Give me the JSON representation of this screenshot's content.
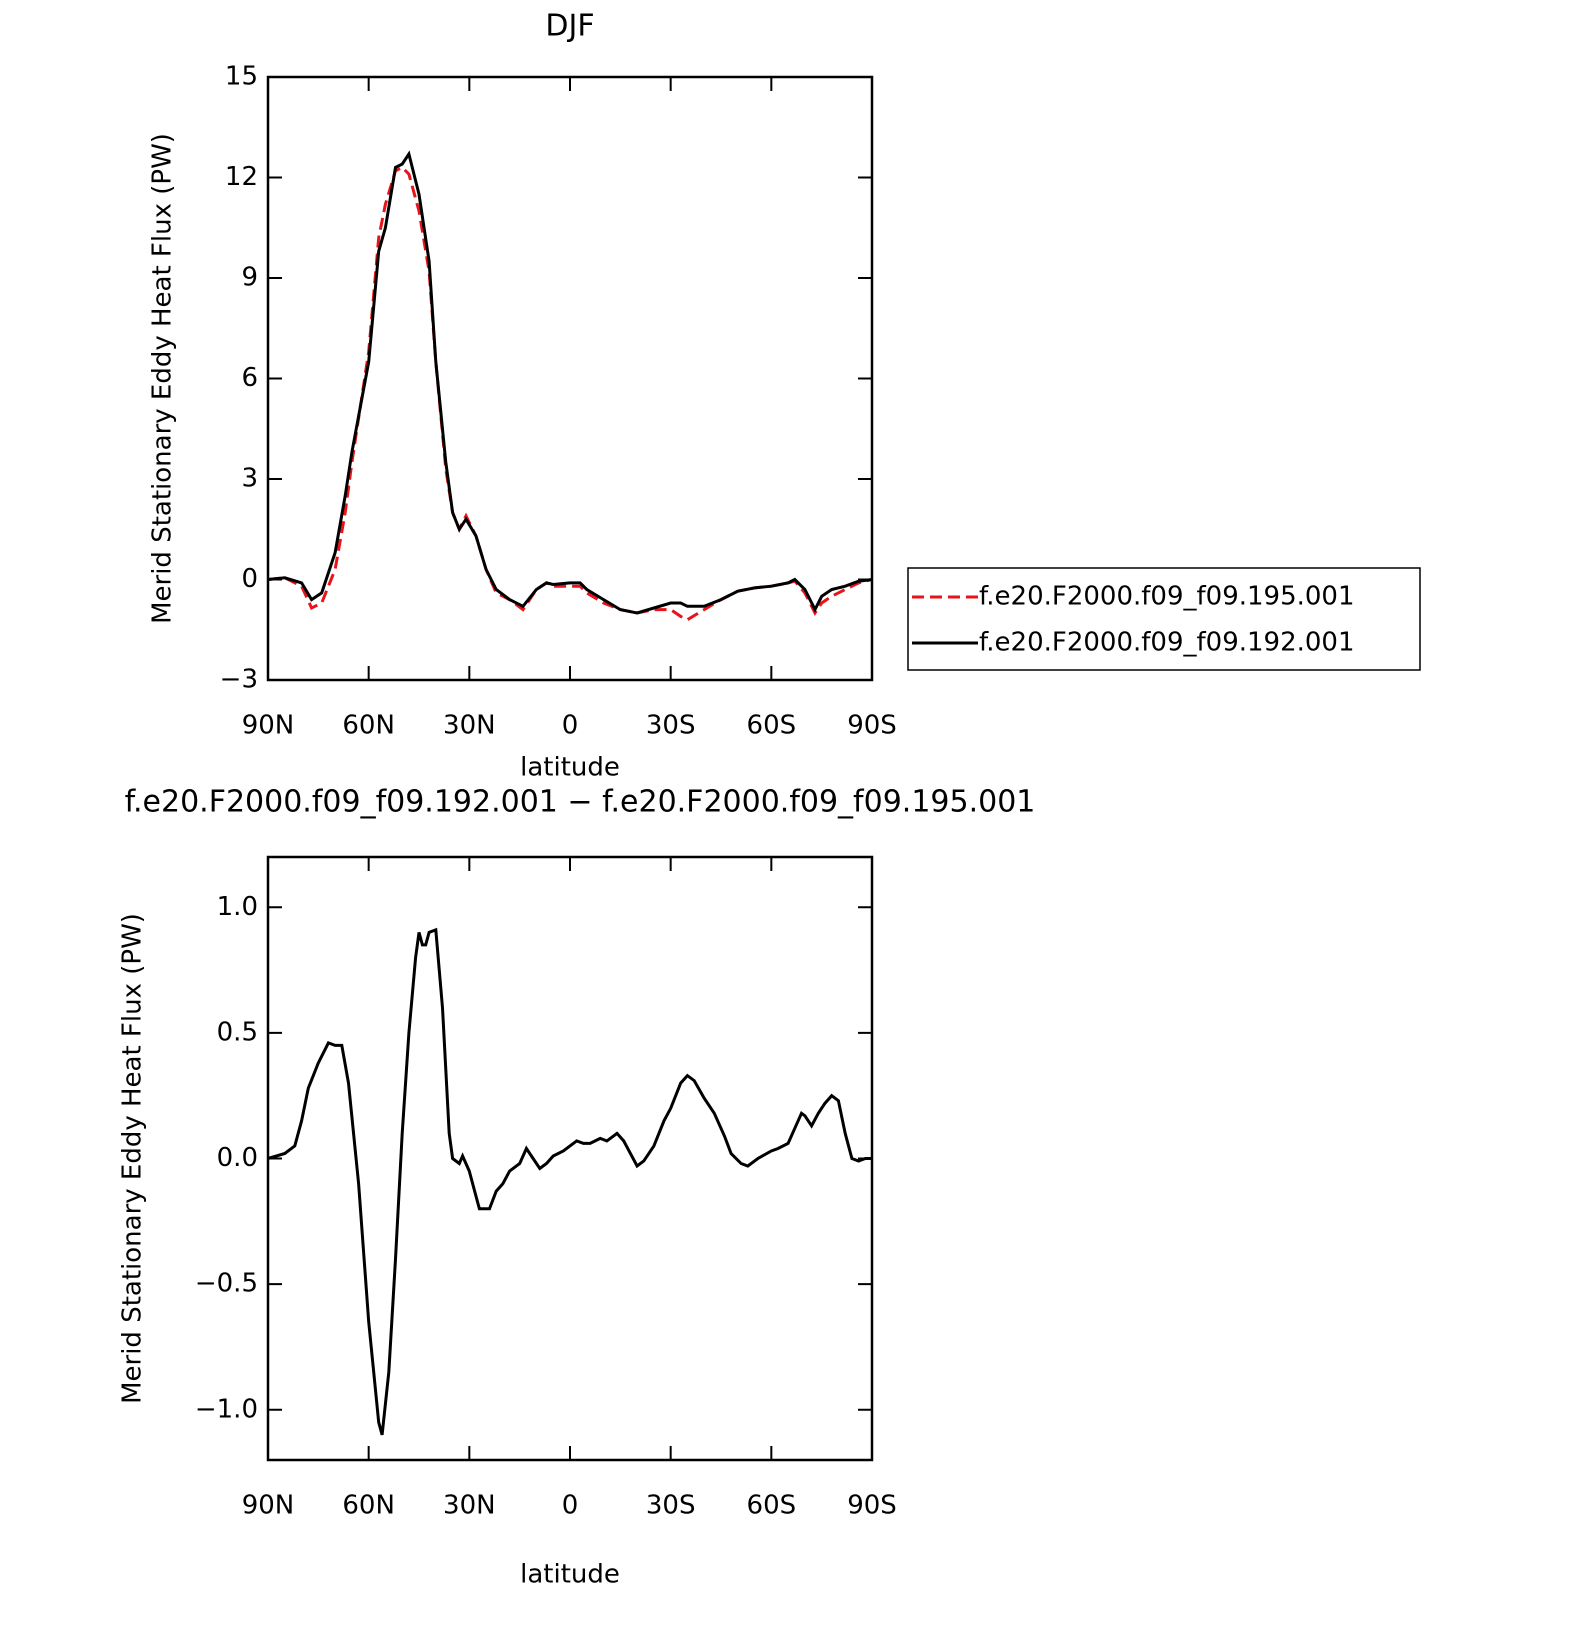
{
  "chart_data": [
    {
      "type": "line",
      "title": "DJF",
      "xlabel": "latitude",
      "ylabel": "Merid Stationary Eddy Heat Flux (PW)",
      "xlim": [
        90,
        -90
      ],
      "ylim": [
        -3,
        15
      ],
      "xticks": [
        {
          "value": 90,
          "label": "90N"
        },
        {
          "value": 60,
          "label": "60N"
        },
        {
          "value": 30,
          "label": "30N"
        },
        0,
        {
          "value": -30,
          "label": "30S"
        },
        {
          "value": -60,
          "label": "60S"
        },
        {
          "value": -90,
          "label": "90S"
        }
      ],
      "yticks": [
        {
          "value": -3,
          "label": "−3"
        },
        0,
        3,
        6,
        9,
        12,
        15
      ],
      "x": [
        90,
        85,
        80,
        77,
        74,
        70,
        67,
        65,
        60,
        57,
        55,
        52,
        50,
        48,
        45,
        42,
        40,
        37,
        35,
        33,
        31,
        28,
        25,
        22,
        18,
        14,
        10,
        7,
        5,
        0,
        -3,
        -5,
        -10,
        -15,
        -20,
        -25,
        -30,
        -33,
        -35,
        -40,
        -45,
        -50,
        -55,
        -60,
        -65,
        -67,
        -70,
        -73,
        -75,
        -78,
        -82,
        -86,
        -90
      ],
      "series": [
        {
          "name": "f.e20.F2000.f09_f09.195.001",
          "color": "#e8141a",
          "linestyle": "dashed",
          "values": [
            0,
            0.05,
            -0.2,
            -0.85,
            -0.7,
            0.3,
            2.0,
            3.5,
            6.8,
            10.2,
            11.2,
            12.2,
            12.3,
            12.1,
            11.0,
            9.2,
            6.5,
            3.3,
            2.0,
            1.5,
            1.9,
            1.3,
            0.3,
            -0.4,
            -0.6,
            -0.9,
            -0.3,
            -0.1,
            -0.2,
            -0.2,
            -0.2,
            -0.4,
            -0.7,
            -0.9,
            -1.0,
            -0.9,
            -0.9,
            -1.1,
            -1.2,
            -0.9,
            -0.6,
            -0.35,
            -0.25,
            -0.2,
            -0.1,
            -0.05,
            -0.4,
            -1.0,
            -0.7,
            -0.5,
            -0.3,
            -0.1,
            0
          ]
        },
        {
          "name": "f.e20.F2000.f09_f09.192.001",
          "color": "#000000",
          "linestyle": "solid",
          "values": [
            0,
            0.05,
            -0.1,
            -0.6,
            -0.4,
            0.8,
            2.5,
            3.8,
            6.5,
            9.8,
            10.5,
            12.3,
            12.4,
            12.7,
            11.5,
            9.5,
            6.5,
            3.5,
            2.0,
            1.5,
            1.8,
            1.3,
            0.3,
            -0.3,
            -0.6,
            -0.8,
            -0.3,
            -0.1,
            -0.15,
            -0.1,
            -0.1,
            -0.3,
            -0.6,
            -0.9,
            -1.0,
            -0.85,
            -0.7,
            -0.7,
            -0.8,
            -0.8,
            -0.6,
            -0.35,
            -0.25,
            -0.2,
            -0.1,
            0.0,
            -0.3,
            -0.9,
            -0.5,
            -0.3,
            -0.2,
            -0.05,
            0
          ]
        }
      ]
    },
    {
      "type": "line",
      "title": "f.e20.F2000.f09_f09.192.001 − f.e20.F2000.f09_f09.195.001",
      "xlabel": "latitude",
      "ylabel": "Merid Stationary Eddy Heat Flux (PW)",
      "xlim": [
        90,
        -90
      ],
      "ylim": [
        -1.2,
        1.2
      ],
      "xticks": [
        {
          "value": 90,
          "label": "90N"
        },
        {
          "value": 60,
          "label": "60N"
        },
        {
          "value": 30,
          "label": "30N"
        },
        0,
        {
          "value": -30,
          "label": "30S"
        },
        {
          "value": -60,
          "label": "60S"
        },
        {
          "value": -90,
          "label": "90S"
        }
      ],
      "yticks": [
        {
          "value": -1,
          "label": "−1.0"
        },
        {
          "value": -0.5,
          "label": "−0.5"
        },
        {
          "value": 0,
          "label": "0.0"
        },
        0.5,
        {
          "value": 1,
          "label": "1.0"
        }
      ],
      "x": [
        90,
        85,
        82,
        80,
        78,
        75,
        72,
        70,
        68,
        66,
        63,
        60,
        57,
        56,
        54,
        52,
        50,
        48,
        46,
        45,
        44,
        43,
        42,
        40,
        38,
        36,
        35,
        33,
        32,
        30,
        28,
        27,
        24,
        22,
        20,
        18,
        15,
        13,
        11,
        9,
        7,
        5,
        2,
        0,
        -2,
        -4,
        -6,
        -9,
        -11,
        -14,
        -16,
        -20,
        -22,
        -25,
        -28,
        -30,
        -33,
        -35,
        -37,
        -40,
        -43,
        -46,
        -48,
        -51,
        -53,
        -56,
        -60,
        -62,
        -65,
        -67,
        -69,
        -70,
        -72,
        -74,
        -76,
        -78,
        -80,
        -82,
        -84,
        -86,
        -88,
        -90
      ],
      "series": [
        {
          "color": "#000000",
          "linestyle": "solid",
          "values": [
            0,
            0.02,
            0.05,
            0.15,
            0.28,
            0.38,
            0.46,
            0.45,
            0.45,
            0.3,
            -0.1,
            -0.65,
            -1.05,
            -1.1,
            -0.85,
            -0.4,
            0.1,
            0.5,
            0.8,
            0.9,
            0.85,
            0.85,
            0.9,
            0.91,
            0.6,
            0.1,
            0.0,
            -0.02,
            0.01,
            -0.05,
            -0.15,
            -0.2,
            -0.2,
            -0.13,
            -0.1,
            -0.05,
            -0.02,
            0.04,
            0.0,
            -0.04,
            -0.02,
            0.01,
            0.03,
            0.05,
            0.07,
            0.06,
            0.06,
            0.08,
            0.07,
            0.1,
            0.07,
            -0.03,
            -0.01,
            0.05,
            0.15,
            0.2,
            0.3,
            0.33,
            0.31,
            0.24,
            0.18,
            0.09,
            0.02,
            -0.02,
            -0.03,
            0.0,
            0.03,
            0.04,
            0.06,
            0.12,
            0.18,
            0.17,
            0.13,
            0.18,
            0.22,
            0.25,
            0.23,
            0.1,
            0.0,
            -0.01,
            0.0,
            0
          ]
        }
      ]
    }
  ]
}
